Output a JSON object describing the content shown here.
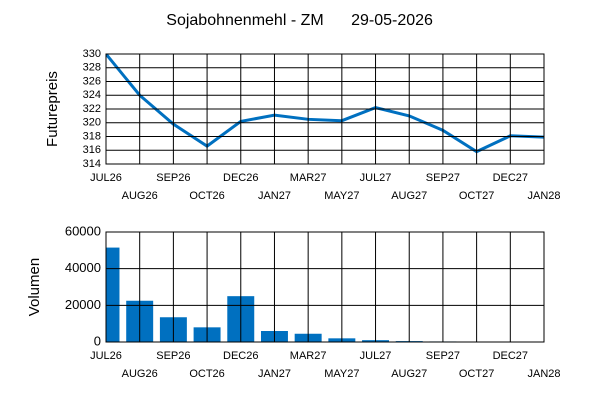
{
  "chart_data": [
    {
      "type": "line",
      "title": "Sojabohnenmehl - ZM",
      "subtitle": "29-05-2026",
      "ylabel": "Futurepreis",
      "categories": [
        "JUL26",
        "AUG26",
        "SEP26",
        "OCT26",
        "DEC26",
        "JAN27",
        "MAR27",
        "MAY27",
        "JUL27",
        "AUG27",
        "SEP27",
        "OCT27",
        "DEC27",
        "JAN28"
      ],
      "values": [
        330,
        324,
        319.8,
        316.6,
        320.2,
        321.1,
        320.5,
        320.3,
        322.2,
        321,
        318.9,
        315.8,
        318.1,
        317.9
      ],
      "color": "#0070c0",
      "ylim": [
        314,
        330
      ],
      "yticks": [
        314,
        316,
        318,
        320,
        322,
        324,
        326,
        328,
        330
      ],
      "grid": true
    },
    {
      "type": "bar",
      "ylabel": "Volumen",
      "categories": [
        "JUL26",
        "AUG26",
        "SEP26",
        "OCT26",
        "DEC26",
        "JAN27",
        "MAR27",
        "MAY27",
        "JUL27",
        "AUG27",
        "SEP27",
        "OCT27",
        "DEC27",
        "JAN28"
      ],
      "values": [
        51500,
        22500,
        13500,
        8000,
        25000,
        6000,
        4500,
        2000,
        1000,
        500,
        300,
        200,
        200,
        100
      ],
      "color": "#0070c0",
      "ylim": [
        0,
        60000
      ],
      "yticks": [
        0,
        20000,
        40000,
        60000
      ],
      "grid": true
    }
  ]
}
